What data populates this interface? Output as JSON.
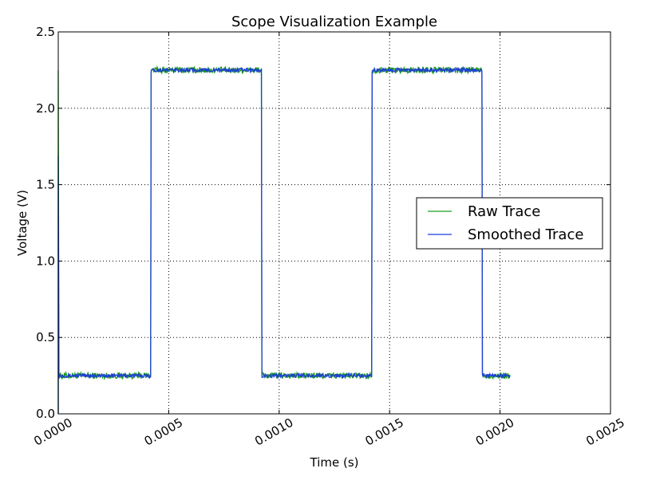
{
  "chart_data": {
    "type": "line",
    "title": "Scope Visualization Example",
    "xlabel": "Time (s)",
    "ylabel": "Voltage (V)",
    "xlim": [
      0,
      0.0025
    ],
    "ylim": [
      0,
      2.5
    ],
    "x_ticks": [
      "0.0000",
      "0.0005",
      "0.0010",
      "0.0015",
      "0.0020",
      "0.0025"
    ],
    "y_ticks": [
      "0.0",
      "0.5",
      "1.0",
      "1.5",
      "2.0",
      "2.5"
    ],
    "grid": true,
    "legend_position": "center-right",
    "signal": {
      "low_level": 0.25,
      "high_level": 2.25,
      "edges": [
        {
          "t": 0.00042,
          "to": "high"
        },
        {
          "t": 0.00092,
          "to": "low"
        },
        {
          "t": 0.00142,
          "to": "high"
        },
        {
          "t": 0.00192,
          "to": "low"
        }
      ],
      "start_transient_peak": 2.25,
      "end_time": 0.002045
    },
    "series": [
      {
        "name": "Raw Trace",
        "color": "#1a9e1a",
        "noise_amplitude": 0.02
      },
      {
        "name": "Smoothed Trace",
        "color": "#1f3fd6",
        "noise_amplitude": 0.012
      }
    ]
  }
}
